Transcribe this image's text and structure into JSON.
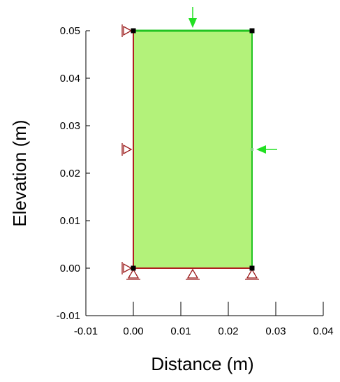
{
  "chart_data": {
    "type": "scatter",
    "xlabel": "Distance (m)",
    "ylabel": "Elevation (m)",
    "xlim": [
      -0.01,
      0.04
    ],
    "ylim": [
      -0.01,
      0.05
    ],
    "x_ticks": [
      "-0.01",
      "0.00",
      "0.01",
      "0.02",
      "0.03",
      "0.04"
    ],
    "y_ticks": [
      "0.05",
      "0.04",
      "0.03",
      "0.02",
      "0.01",
      "0.00",
      "-0.01"
    ],
    "domain": {
      "x": [
        0.0,
        0.025
      ],
      "y": [
        0.0,
        0.05
      ]
    },
    "nodes": [
      {
        "x": 0.0,
        "y": 0.05
      },
      {
        "x": 0.025,
        "y": 0.05
      },
      {
        "x": 0.0,
        "y": 0.0
      },
      {
        "x": 0.025,
        "y": 0.0
      }
    ],
    "fixity_x": [
      {
        "x": 0.0,
        "y": 0.05
      },
      {
        "x": 0.0,
        "y": 0.025
      },
      {
        "x": 0.0,
        "y": 0.0
      }
    ],
    "fixity_y": [
      {
        "x": 0.0,
        "y": 0.0
      },
      {
        "x": 0.0125,
        "y": 0.0
      },
      {
        "x": 0.025,
        "y": 0.0
      }
    ],
    "loads": [
      {
        "x": 0.0125,
        "y": 0.05,
        "direction": "down"
      },
      {
        "x": 0.025,
        "y": 0.025,
        "direction": "left"
      }
    ],
    "colors": {
      "fill": "#b3f27a",
      "top_edge": "#22c422",
      "right_edge": "#22c422",
      "left_edge": "#b02020",
      "bottom_edge": "#b02020",
      "fixity": "#9b1b1b",
      "load": "#22e022",
      "node": "#000000"
    }
  }
}
